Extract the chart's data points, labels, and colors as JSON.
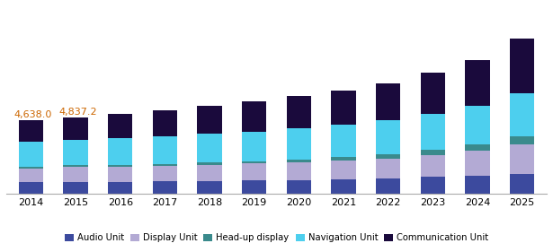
{
  "years": [
    2014,
    2015,
    2016,
    2017,
    2018,
    2019,
    2020,
    2021,
    2022,
    2023,
    2024,
    2025
  ],
  "audio_unit": [
    700,
    720,
    740,
    760,
    790,
    820,
    860,
    910,
    970,
    1050,
    1140,
    1250
  ],
  "display_unit": [
    900,
    950,
    970,
    1000,
    1040,
    1080,
    1120,
    1180,
    1260,
    1400,
    1580,
    1900
  ],
  "headup_display": [
    100,
    110,
    120,
    130,
    145,
    160,
    180,
    210,
    250,
    310,
    380,
    480
  ],
  "navigation_unit": [
    1600,
    1650,
    1700,
    1760,
    1820,
    1890,
    1970,
    2070,
    2170,
    2290,
    2450,
    2750
  ],
  "communication_unit": [
    1338,
    1407.2,
    1530,
    1630,
    1760,
    1900,
    2050,
    2200,
    2380,
    2620,
    2950,
    3500
  ],
  "annotations": [
    {
      "year": 2014,
      "label": "4,638.0"
    },
    {
      "year": 2015,
      "label": "4,837.2"
    }
  ],
  "colors": {
    "audio_unit": "#3c4a9e",
    "display_unit": "#b3aad4",
    "headup_display": "#3a8a8c",
    "navigation_unit": "#4dcfee",
    "communication_unit": "#1a0a3c"
  },
  "legend_labels": [
    "Audio Unit",
    "Display Unit",
    "Head-up display",
    "Navigation Unit",
    "Communication Unit"
  ],
  "figsize": [
    6.15,
    2.81
  ],
  "dpi": 100,
  "bar_width": 0.55,
  "annotation_color": "#cc6600",
  "annotation_fontsize": 8.0,
  "ylim_max": 12000
}
